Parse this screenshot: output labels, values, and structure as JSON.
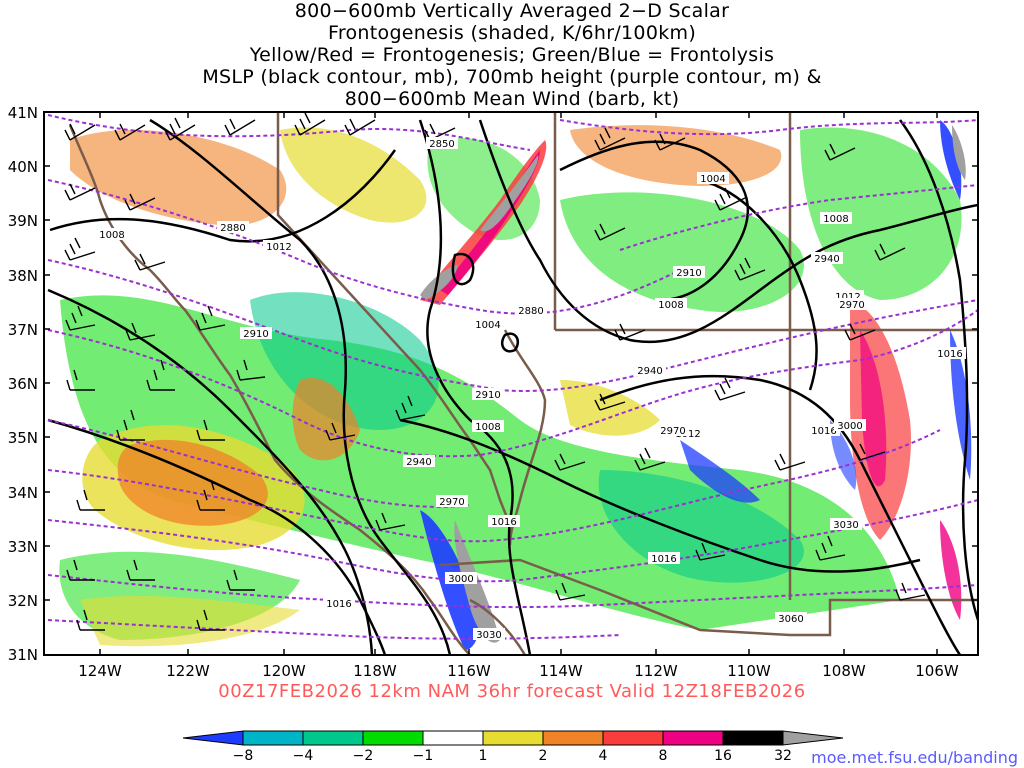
{
  "title": {
    "line1": "800−600mb Vertically Averaged 2−D Scalar",
    "line2": "Frontogenesis (shaded, K/6hr/100km)",
    "line3": "Yellow/Red = Frontogenesis;  Green/Blue = Frontolysis",
    "line4": "MSLP (black contour, mb), 700mb height (purple contour, m) &",
    "line5": "800−600mb Mean Wind (barb, kt)"
  },
  "axes": {
    "lat_labels": [
      "41N",
      "40N",
      "39N",
      "38N",
      "37N",
      "36N",
      "35N",
      "34N",
      "33N",
      "32N",
      "31N"
    ],
    "lon_labels": [
      "124W",
      "122W",
      "120W",
      "118W",
      "116W",
      "114W",
      "112W",
      "110W",
      "108W",
      "106W"
    ]
  },
  "mslp_labels": [
    "1008",
    "1012",
    "1004",
    "1008",
    "1004",
    "1008",
    "1012",
    "1012",
    "1016",
    "1016",
    "1016",
    "1008",
    "1012",
    "1016"
  ],
  "height_labels": [
    "2850",
    "2880",
    "2910",
    "2880",
    "2910",
    "2940",
    "2910",
    "2940",
    "2970",
    "2970",
    "3000",
    "3030",
    "3060",
    "3000",
    "3030",
    "2970",
    "2940"
  ],
  "valid_text": "00Z17FEB2026 12km NAM 36hr forecast Valid 12Z18FEB2026",
  "colorbar": {
    "tick_labels": [
      "−8",
      "−4",
      "−2",
      "−1",
      "1",
      "2",
      "4",
      "8",
      "16",
      "32"
    ],
    "colors": [
      "#1e3cff",
      "#00b4c8",
      "#00c88c",
      "#00dc00",
      "#ffffff",
      "#e6dc32",
      "#f08228",
      "#fa3c3c",
      "#f00082",
      "#000000",
      "#a0a0a0"
    ]
  },
  "credit": "moe.met.fsu.edu/banding",
  "colors": {
    "mslp": "#000000",
    "height": "#9b30d0",
    "state_border": "#7a5c4a",
    "valid_text": "#ff5a5a",
    "credit": "#5a5aff"
  }
}
